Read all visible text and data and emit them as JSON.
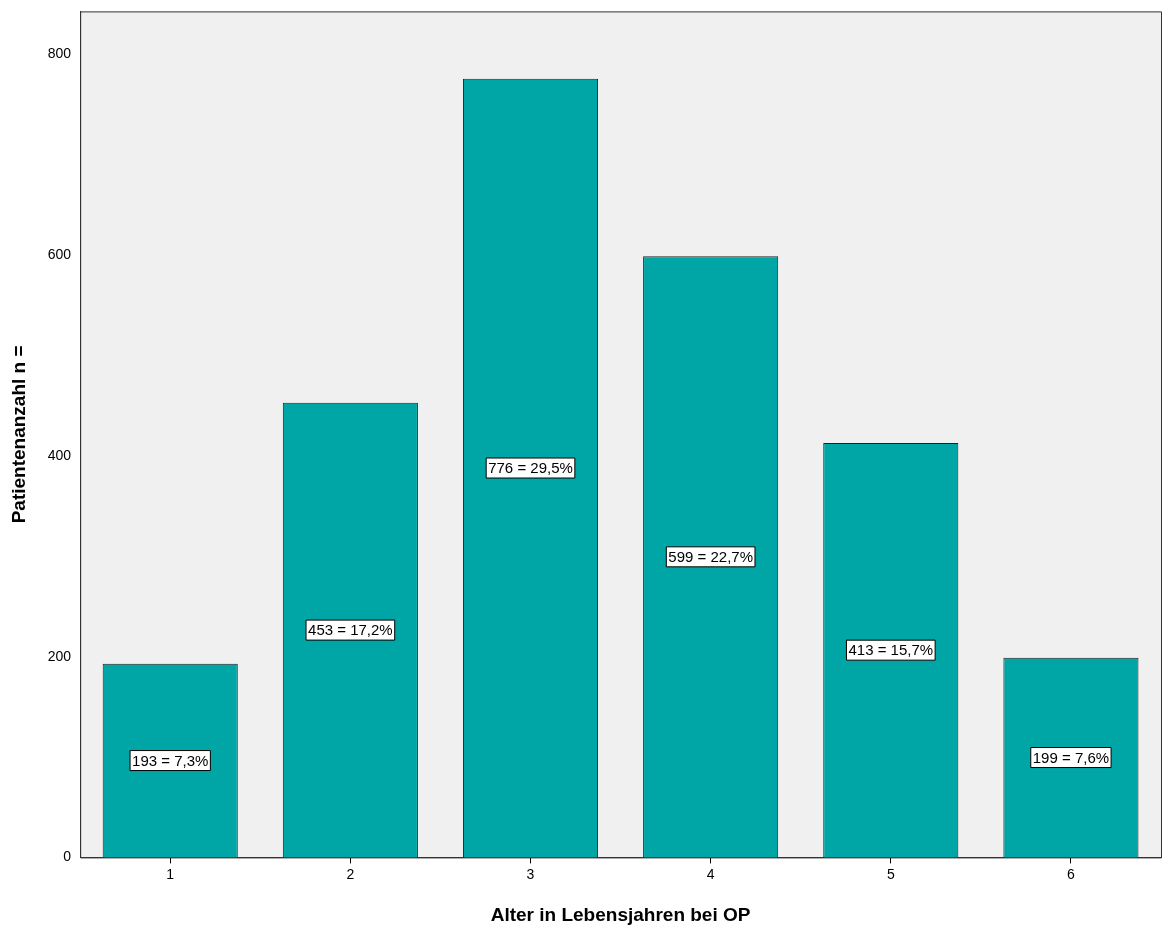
{
  "chart_data": {
    "type": "bar",
    "xlabel": "Alter in Lebensjahren bei OP",
    "ylabel": "Patientenanzahl n =",
    "categories": [
      "1",
      "2",
      "3",
      "4",
      "5",
      "6"
    ],
    "values": [
      193,
      453,
      776,
      599,
      413,
      199
    ],
    "value_labels": [
      "193 = 7,3%",
      "453 = 17,2%",
      "776 = 29,5%",
      "599 = 22,7%",
      "413 = 15,7%",
      "199 = 7,6%"
    ],
    "color": "#00a5a5",
    "ylim": [
      0,
      843
    ],
    "yticks": [
      0,
      200,
      400,
      600,
      800
    ],
    "grid": false,
    "legend": false
  }
}
